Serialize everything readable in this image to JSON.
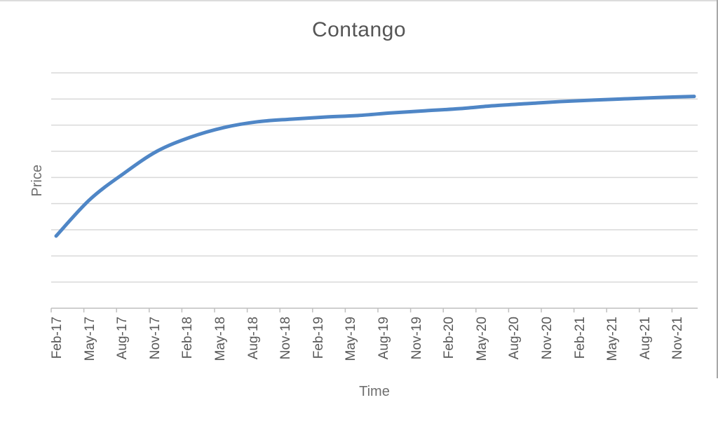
{
  "chart_data": {
    "type": "line",
    "title": "Contango",
    "xlabel": "Time",
    "ylabel": "Price",
    "categories": [
      "Feb-17",
      "May-17",
      "Aug-17",
      "Nov-17",
      "Feb-18",
      "May-18",
      "Aug-18",
      "Nov-18",
      "Feb-19",
      "May-19",
      "Aug-19",
      "Nov-19",
      "Feb-20",
      "May-20",
      "Aug-20",
      "Nov-20",
      "Feb-21",
      "May-21",
      "Aug-21",
      "Nov-21"
    ],
    "series": [
      {
        "name": "Price",
        "values": [
          27.6,
          41.5,
          51.4,
          60.0,
          65.4,
          69.1,
          71.3,
          72.3,
          73.1,
          73.7,
          74.7,
          75.5,
          76.3,
          77.4,
          78.2,
          79.0,
          79.6,
          80.1,
          80.6,
          81.0
        ]
      }
    ],
    "ylim": [
      0,
      90
    ],
    "y_grid_step": 10,
    "y_tick_labels": "none",
    "legend": "none",
    "grid": "horizontal",
    "colors": {
      "line": "#4f86c6",
      "gridline": "#d9d9d9",
      "axis_line": "#bfbfbf",
      "title": "#555555",
      "tick_label": "#595959",
      "axis_title": "#6f6f6f"
    }
  }
}
